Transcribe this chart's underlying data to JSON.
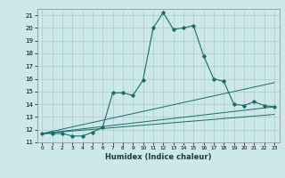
{
  "xlabel": "Humidex (Indice chaleur)",
  "background_color": "#cce8e8",
  "grid_color": "#aacccc",
  "line_color": "#1a6b6b",
  "xlim": [
    -0.5,
    23.5
  ],
  "ylim": [
    11,
    21.5
  ],
  "yticks": [
    11,
    12,
    13,
    14,
    15,
    16,
    17,
    18,
    19,
    20,
    21
  ],
  "xticks": [
    0,
    1,
    2,
    3,
    4,
    5,
    6,
    7,
    8,
    9,
    10,
    11,
    12,
    13,
    14,
    15,
    16,
    17,
    18,
    19,
    20,
    21,
    22,
    23
  ],
  "main_line": {
    "x": [
      0,
      1,
      2,
      3,
      4,
      5,
      6,
      7,
      8,
      9,
      10,
      11,
      12,
      13,
      14,
      15,
      16,
      17,
      18,
      19,
      20,
      21,
      22,
      23
    ],
    "y": [
      11.7,
      11.7,
      11.7,
      11.5,
      11.5,
      11.8,
      12.2,
      14.9,
      14.9,
      14.7,
      15.9,
      20.0,
      21.2,
      19.9,
      20.0,
      20.2,
      17.8,
      16.0,
      15.8,
      14.0,
      13.9,
      14.2,
      13.9,
      13.8
    ]
  },
  "line2": {
    "x": [
      0,
      23
    ],
    "y": [
      11.7,
      15.7
    ]
  },
  "line3": {
    "x": [
      0,
      23
    ],
    "y": [
      11.7,
      13.8
    ]
  },
  "line4": {
    "x": [
      0,
      23
    ],
    "y": [
      11.7,
      13.2
    ]
  },
  "xlabel_fontsize": 6.0,
  "tick_fontsize": 5.0
}
